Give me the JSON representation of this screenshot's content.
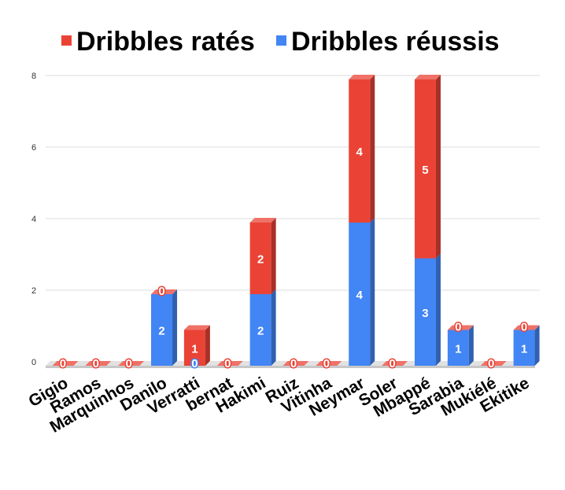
{
  "chart_data": {
    "type": "bar",
    "stacked": true,
    "style": "3d",
    "categories": [
      "Gigio",
      "Ramos",
      "Marquinhos",
      "Danilo",
      "Verratti",
      "bernat",
      "Hakimi",
      "Ruiz",
      "Vitinha",
      "Neymar",
      "Soler",
      "Mbappé",
      "Sarabia",
      "Mukiélé",
      "Ekitike"
    ],
    "series": [
      {
        "name": "Dribbles réussis",
        "color": "#4285f4",
        "values": [
          0,
          0,
          0,
          2,
          0,
          0,
          2,
          0,
          0,
          4,
          0,
          3,
          1,
          0,
          1
        ]
      },
      {
        "name": "Dribbles ratés",
        "color": "#ea4335",
        "values": [
          0,
          0,
          0,
          0,
          1,
          0,
          2,
          0,
          0,
          4,
          0,
          5,
          0,
          0,
          0
        ]
      }
    ],
    "legend_order": [
      "Dribbles ratés",
      "Dribbles réussis"
    ],
    "legend_position": "top",
    "y_ticks": [
      "0",
      "2",
      "4",
      "6",
      "8"
    ],
    "ylim": [
      0,
      8
    ],
    "grid": true,
    "title": "",
    "xlabel": "",
    "ylabel": ""
  }
}
